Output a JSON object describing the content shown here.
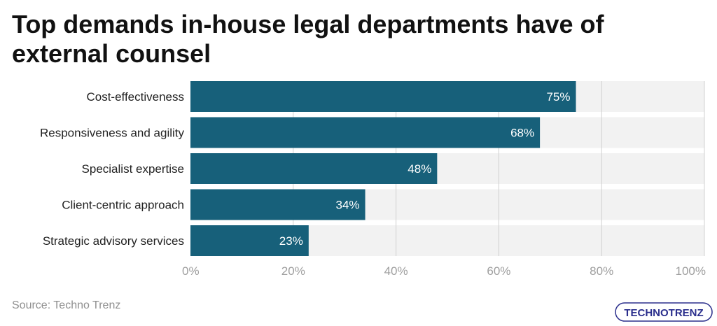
{
  "title": "Top demands in-house legal departments have of external counsel",
  "source": "Source: Techno Trenz",
  "logo_text": "TECHNOTRENZ",
  "colors": {
    "bar": "#17607a",
    "track": "#f2f2f2",
    "grid": "#d0d0d0",
    "label": "#222222",
    "tick": "#9e9e9e",
    "value_label": "#ffffff",
    "logo": "#2a2e8c"
  },
  "chart_data": {
    "type": "bar",
    "orientation": "horizontal",
    "categories": [
      "Cost-effectiveness",
      "Responsiveness and agility",
      "Specialist expertise",
      "Client-centric approach",
      "Strategic advisory services"
    ],
    "values": [
      75,
      68,
      48,
      34,
      23
    ],
    "value_labels": [
      "75%",
      "68%",
      "48%",
      "34%",
      "23%"
    ],
    "xlim": [
      0,
      100
    ],
    "x_ticks": [
      0,
      20,
      40,
      60,
      80,
      100
    ],
    "x_tick_labels": [
      "0%",
      "20%",
      "40%",
      "60%",
      "80%",
      "100%"
    ],
    "grid": true,
    "legend": "none"
  }
}
